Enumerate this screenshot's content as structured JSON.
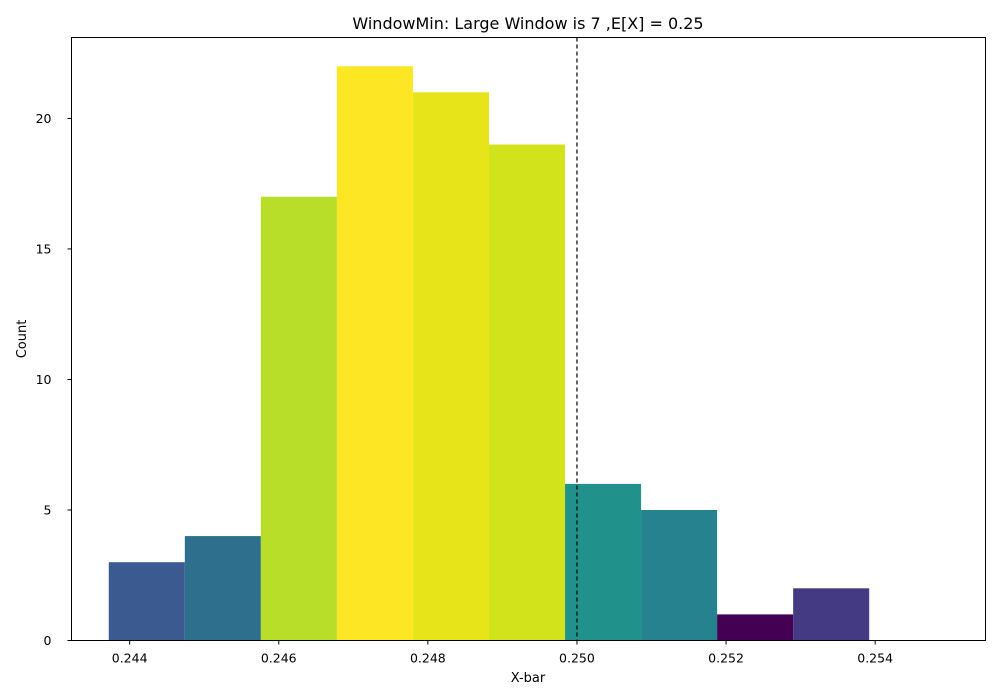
{
  "chart_data": {
    "type": "bar",
    "title": "WindowMin: Large Window is 7 ,E[X] = 0.25",
    "xlabel": "X-bar",
    "ylabel": "Count",
    "xlim": [
      0.24322,
      0.25548
    ],
    "ylim": [
      0,
      23.1
    ],
    "xticks": [
      0.244,
      0.246,
      0.248,
      0.25,
      0.252,
      0.254
    ],
    "xtick_labels": [
      "0.244",
      "0.246",
      "0.248",
      "0.250",
      "0.252",
      "0.254"
    ],
    "yticks": [
      0,
      5,
      10,
      15,
      20
    ],
    "ytick_labels": [
      "0",
      "5",
      "10",
      "15",
      "20"
    ],
    "grid": false,
    "reference_line": {
      "x": 0.25,
      "style": "dashed",
      "color": "#000000"
    },
    "bins": [
      {
        "x0": 0.24372,
        "x1": 0.24474,
        "value": 3,
        "color": "#3b5a8f"
      },
      {
        "x0": 0.24474,
        "x1": 0.24576,
        "value": 4,
        "color": "#2e6f8e"
      },
      {
        "x0": 0.24576,
        "x1": 0.24678,
        "value": 17,
        "color": "#b8de29"
      },
      {
        "x0": 0.24678,
        "x1": 0.2478,
        "value": 22,
        "color": "#fde725"
      },
      {
        "x0": 0.2478,
        "x1": 0.24882,
        "value": 21,
        "color": "#e7e419"
      },
      {
        "x0": 0.24882,
        "x1": 0.24984,
        "value": 19,
        "color": "#d2e21b"
      },
      {
        "x0": 0.24984,
        "x1": 0.25086,
        "value": 6,
        "color": "#21918c"
      },
      {
        "x0": 0.25086,
        "x1": 0.25188,
        "value": 5,
        "color": "#26828e"
      },
      {
        "x0": 0.25188,
        "x1": 0.2529,
        "value": 1,
        "color": "#440154"
      },
      {
        "x0": 0.2529,
        "x1": 0.25392,
        "value": 2,
        "color": "#443a83"
      }
    ]
  }
}
